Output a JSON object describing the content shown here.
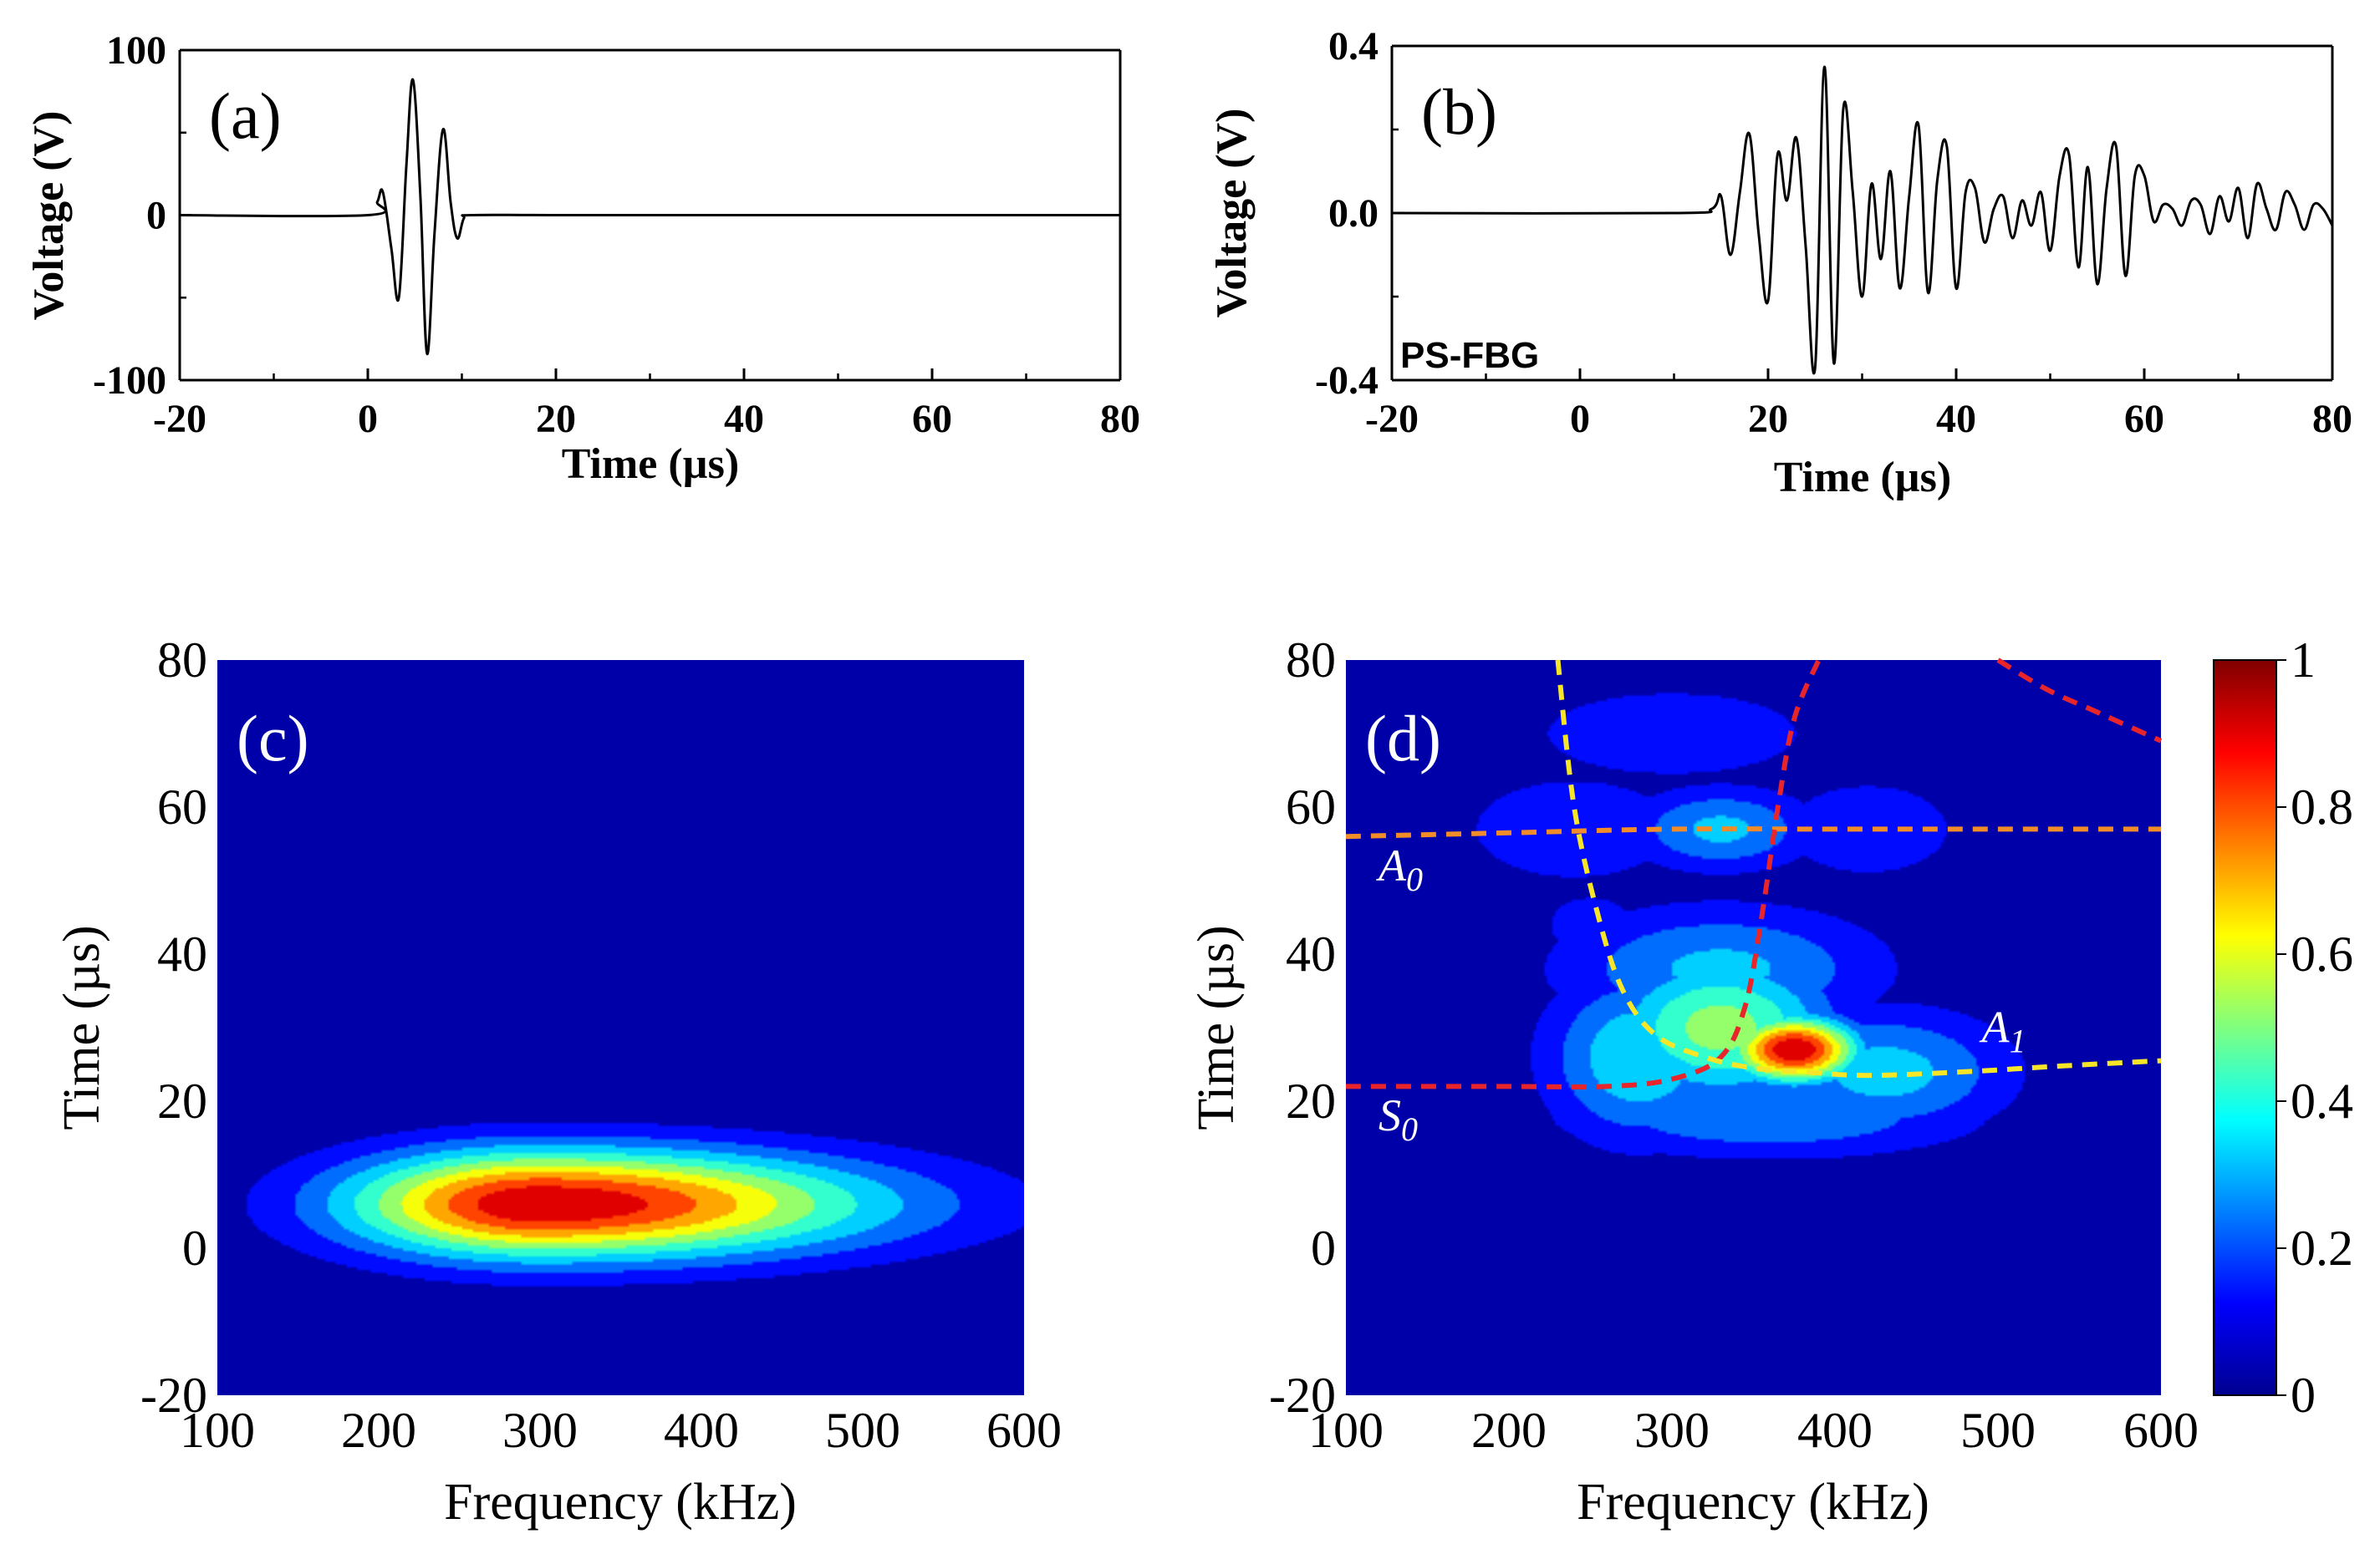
{
  "chart_data": [
    {
      "panel": "(a)",
      "type": "line",
      "xlabel": "Time (µs)",
      "ylabel": "Voltage (V)",
      "xlim": [
        -20,
        80
      ],
      "ylim": [
        -100,
        100
      ],
      "xticks": [
        "-20",
        "0",
        "20",
        "40",
        "60",
        "80"
      ],
      "yticks": [
        "-100",
        "0",
        "100"
      ],
      "grid": false,
      "series": [
        {
          "x": [
            -20,
            0,
            1,
            1.6,
            2.5,
            3.3,
            4.1,
            4.8,
            5.6,
            6.3,
            7.1,
            8.0,
            8.8,
            9.5,
            10.2,
            11,
            20,
            40,
            60,
            80
          ],
          "y": [
            0,
            0,
            8,
            14,
            -20,
            -50,
            30,
            82,
            10,
            -84,
            -10,
            52,
            8,
            -14,
            -2,
            0,
            0,
            0,
            0,
            0
          ]
        }
      ]
    },
    {
      "panel": "(b)",
      "type": "line",
      "xlabel": "Time (µs)",
      "ylabel": "Voltage (V)",
      "xlim": [
        -20,
        80
      ],
      "ylim": [
        -0.4,
        0.4
      ],
      "xticks": [
        "-20",
        "0",
        "20",
        "40",
        "60",
        "80"
      ],
      "yticks": [
        "-0.4",
        "0.0",
        "0.4"
      ],
      "grid": false,
      "annotation": "PS-FBG",
      "series": [
        {
          "x": [
            -20,
            10,
            14,
            15,
            16,
            17,
            18,
            19,
            20,
            21,
            22,
            23,
            24,
            25,
            26,
            27,
            28,
            29,
            30,
            31,
            32,
            33,
            34,
            35,
            36,
            37,
            38,
            39,
            40,
            41,
            42,
            43,
            44,
            45,
            46,
            47,
            48,
            49,
            50,
            51,
            52,
            53,
            54,
            55,
            56,
            57,
            58,
            59,
            60,
            61,
            62,
            63,
            64,
            65,
            66,
            67,
            68,
            69,
            70,
            71,
            72,
            73,
            74,
            75,
            76,
            77,
            78,
            79,
            80
          ],
          "y": [
            0,
            0,
            0.01,
            0.04,
            -0.1,
            0.05,
            0.19,
            -0.05,
            -0.21,
            0.14,
            0.03,
            0.18,
            -0.08,
            -0.37,
            0.35,
            -0.36,
            0.25,
            0.05,
            -0.2,
            0.07,
            -0.11,
            0.1,
            -0.18,
            0.04,
            0.21,
            -0.19,
            0.08,
            0.16,
            -0.18,
            0.05,
            0.06,
            -0.07,
            0.01,
            0.04,
            -0.06,
            0.03,
            -0.03,
            0.05,
            -0.09,
            0.09,
            0.14,
            -0.13,
            0.11,
            -0.17,
            0.06,
            0.16,
            -0.15,
            0.09,
            0.09,
            -0.02,
            0.02,
            0.01,
            -0.03,
            0.03,
            0.02,
            -0.05,
            0.04,
            -0.02,
            0.06,
            -0.06,
            0.07,
            0.01,
            -0.04,
            0.05,
            0.02,
            -0.04,
            0.02,
            0.01,
            -0.03
          ]
        }
      ]
    },
    {
      "panel": "(c)",
      "type": "heatmap",
      "xlabel": "Frequency (kHz)",
      "ylabel": "Time (µs)",
      "xlim": [
        100,
        600
      ],
      "ylim": [
        -20,
        80
      ],
      "xticks": [
        "100",
        "200",
        "300",
        "400",
        "500",
        "600"
      ],
      "yticks": [
        "-20",
        "0",
        "20",
        "40",
        "60",
        "80"
      ],
      "grid": false,
      "peaks": [
        {
          "f": 300,
          "t": 6,
          "amplitude": 1.0,
          "sigma_f_low": 85,
          "sigma_f_high": 145,
          "sigma_t": 5.2
        }
      ]
    },
    {
      "panel": "(d)",
      "type": "heatmap",
      "xlabel": "Frequency (kHz)",
      "ylabel": "Time (µs)",
      "xlim": [
        100,
        600
      ],
      "ylim": [
        -20,
        80
      ],
      "xticks": [
        "100",
        "200",
        "300",
        "400",
        "500",
        "600"
      ],
      "yticks": [
        "-20",
        "0",
        "20",
        "40",
        "60",
        "80"
      ],
      "grid": false,
      "colorbar": {
        "range": [
          0,
          1
        ],
        "ticks": [
          "0",
          "0.2",
          "0.4",
          "0.6",
          "0.8",
          "1"
        ]
      },
      "peaks": [
        {
          "f": 375,
          "t": 27,
          "amplitude": 1.0,
          "sigma_f": 28,
          "sigma_t": 3.2
        },
        {
          "f": 330,
          "t": 30,
          "amplitude": 0.55,
          "sigma_f": 50,
          "sigma_t": 7
        },
        {
          "f": 280,
          "t": 26,
          "amplitude": 0.4,
          "sigma_f": 40,
          "sigma_t": 8
        },
        {
          "f": 430,
          "t": 24,
          "amplitude": 0.35,
          "sigma_f": 55,
          "sigma_t": 6
        },
        {
          "f": 330,
          "t": 38,
          "amplitude": 0.33,
          "sigma_f": 70,
          "sigma_t": 6
        },
        {
          "f": 360,
          "t": 18,
          "amplitude": 0.3,
          "sigma_f": 90,
          "sigma_t": 4
        },
        {
          "f": 330,
          "t": 57,
          "amplitude": 0.33,
          "sigma_f": 40,
          "sigma_t": 4
        },
        {
          "f": 240,
          "t": 57,
          "amplitude": 0.18,
          "sigma_f": 55,
          "sigma_t": 6
        },
        {
          "f": 420,
          "t": 57,
          "amplitude": 0.16,
          "sigma_f": 50,
          "sigma_t": 6
        },
        {
          "f": 300,
          "t": 70,
          "amplitude": 0.18,
          "sigma_f": 70,
          "sigma_t": 5
        },
        {
          "f": 250,
          "t": 44,
          "amplitude": 0.12,
          "sigma_f": 40,
          "sigma_t": 6
        }
      ],
      "curves": [
        {
          "label": "A0",
          "color": "#f28c28",
          "x": [
            100,
            200,
            300,
            400,
            500,
            600
          ],
          "y": [
            56,
            56.5,
            57,
            57,
            57,
            57
          ]
        },
        {
          "label": "S0",
          "color": "#e8252a",
          "x": [
            100,
            200,
            260,
            300,
            330,
            345,
            355,
            365,
            375,
            390
          ],
          "y": [
            22,
            22,
            22,
            23,
            26,
            33,
            45,
            60,
            72,
            80
          ]
        },
        {
          "label": "A1",
          "color": "#f7e628",
          "x": [
            230,
            240,
            255,
            270,
            290,
            320,
            350,
            380,
            420,
            480,
            540,
            600
          ],
          "y": [
            80,
            60,
            45,
            35,
            29,
            26,
            24.5,
            24,
            23.5,
            24,
            24.8,
            25.5
          ]
        },
        {
          "label": "",
          "color": "#e8252a",
          "x": [
            500,
            530,
            560,
            600
          ],
          "y": [
            80,
            76,
            73,
            69
          ]
        }
      ],
      "mode_labels": [
        {
          "text": "A",
          "sub": "0",
          "f": 120,
          "t": 50
        },
        {
          "text": "S",
          "sub": "0",
          "f": 120,
          "t": 16
        },
        {
          "text": "A",
          "sub": "1",
          "f": 490,
          "t": 28
        }
      ]
    }
  ]
}
